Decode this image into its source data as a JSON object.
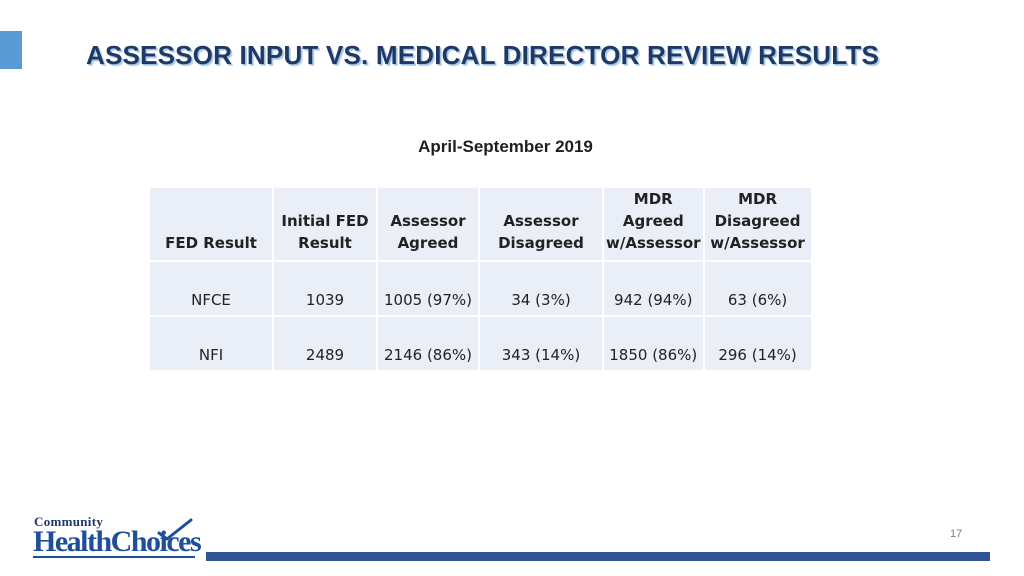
{
  "slide": {
    "title": "ASSESSOR INPUT  VS. MEDICAL DIRECTOR REVIEW RESULTS",
    "subtitle": "April-September 2019",
    "page_number": "17",
    "accent_color": "#5b9bd5",
    "title_color": "#1f3864",
    "footer_bar_color": "#2f5597"
  },
  "table": {
    "headers": [
      [
        "FED Result"
      ],
      [
        "Initial FED",
        "Result"
      ],
      [
        "Assessor",
        "Agreed"
      ],
      [
        "Assessor",
        "Disagreed"
      ],
      [
        "MDR",
        "Agreed",
        "w/Assessor"
      ],
      [
        "MDR",
        "Disagreed",
        "w/Assessor"
      ]
    ],
    "rows": [
      [
        "NFCE",
        "1039",
        "1005 (97%)",
        "34 (3%)",
        "942 (94%)",
        "63 (6%)"
      ],
      [
        "NFI",
        "2489",
        "2146 (86%)",
        "343 (14%)",
        "1850 (86%)",
        "296 (14%)"
      ]
    ],
    "cell_background": "#eaeef7"
  },
  "logo": {
    "line1": "Community",
    "line2": "HealthChoices",
    "icon": "checkmark-icon"
  }
}
